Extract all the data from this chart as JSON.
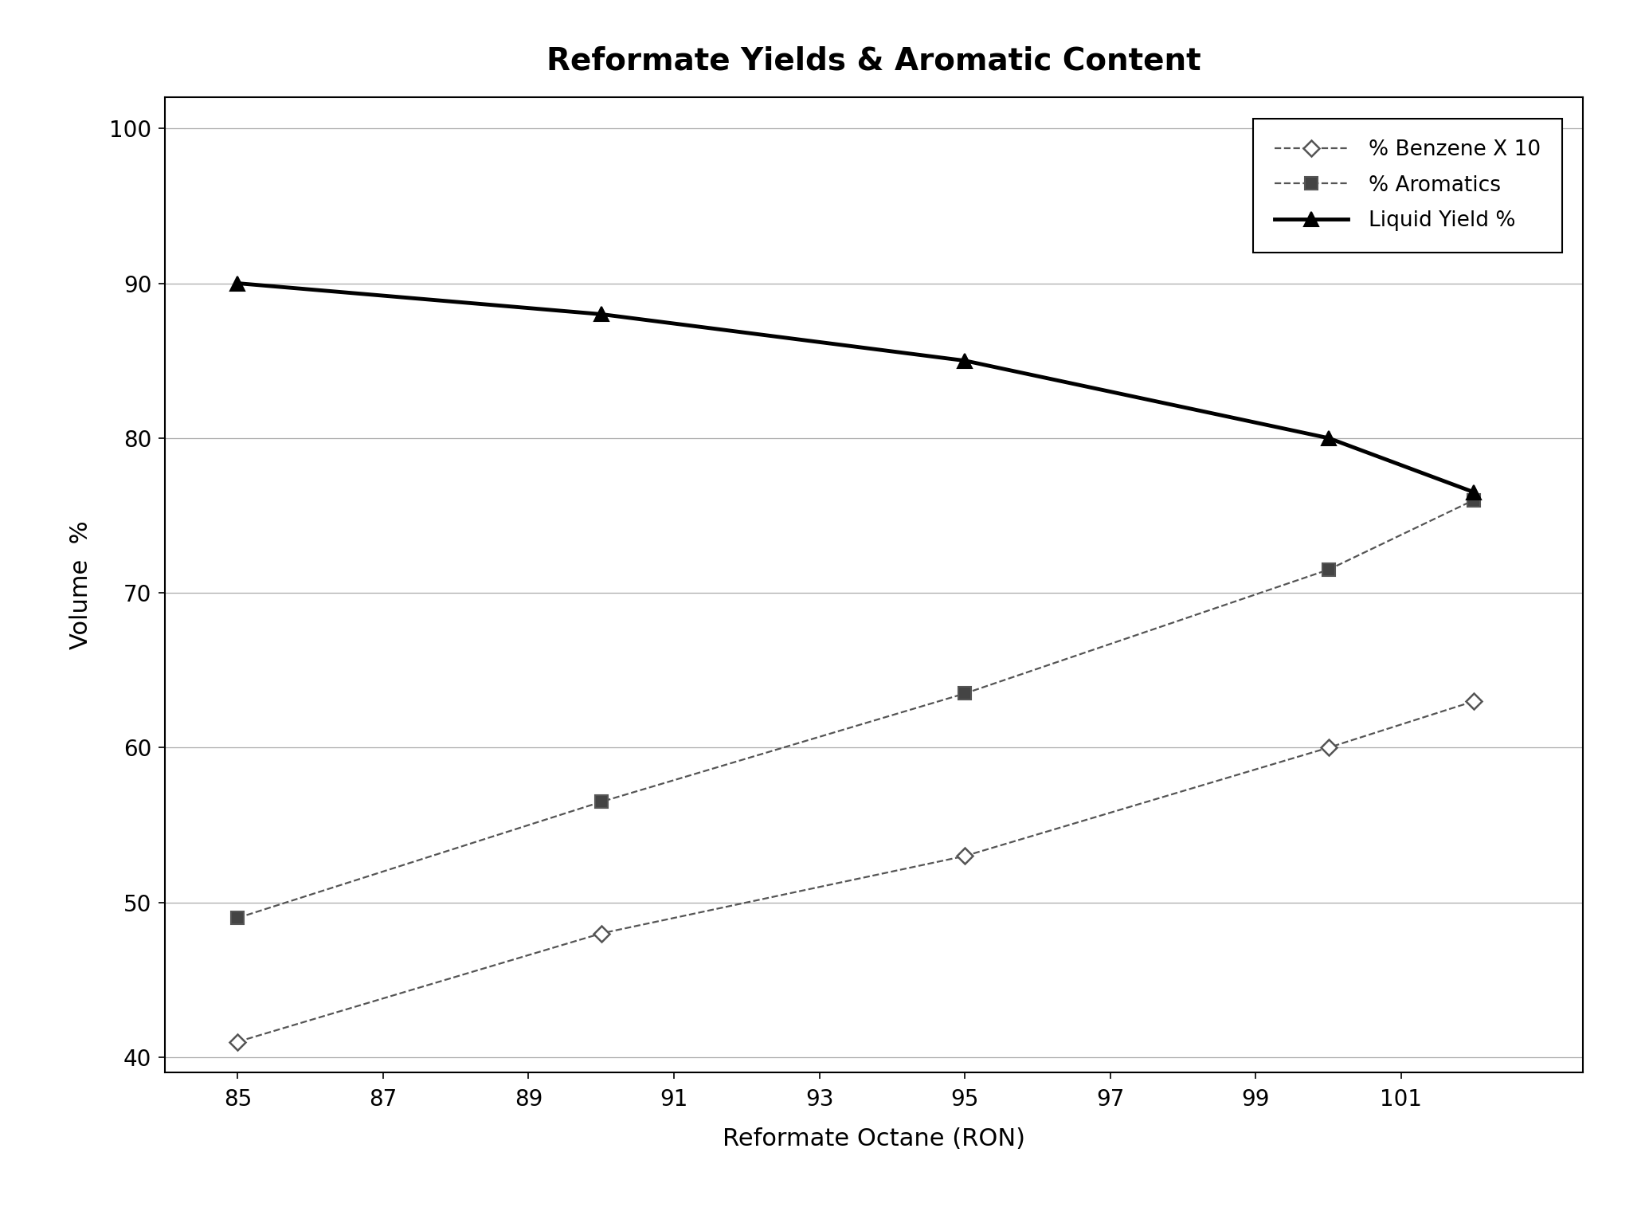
{
  "title": "Reformate Yields & Aromatic Content",
  "xlabel": "Reformate Octane (RON)",
  "ylabel": "Volume  %",
  "xlim": [
    84,
    103.5
  ],
  "ylim": [
    39,
    102
  ],
  "xticks": [
    85,
    87,
    89,
    91,
    93,
    95,
    97,
    99,
    101
  ],
  "yticks": [
    40,
    50,
    60,
    70,
    80,
    90,
    100
  ],
  "benzene_x": [
    85,
    90,
    95,
    100,
    102
  ],
  "benzene_y": [
    41,
    48,
    53,
    60,
    63
  ],
  "aromatics_x": [
    85,
    90,
    95,
    100,
    102
  ],
  "aromatics_y": [
    49,
    56.5,
    63.5,
    71.5,
    76
  ],
  "liquid_yield_x": [
    85,
    90,
    95,
    100,
    102
  ],
  "liquid_yield_y": [
    90,
    88,
    85,
    80,
    76.5
  ],
  "benzene_color": "#555555",
  "aromatics_color": "#555555",
  "liquid_yield_color": "#000000",
  "background_color": "#ffffff",
  "legend_labels": [
    "% Benzene X 10",
    "% Aromatics",
    "Liquid Yield %"
  ],
  "title_fontsize": 28,
  "axis_label_fontsize": 22,
  "tick_fontsize": 20,
  "legend_fontsize": 19
}
